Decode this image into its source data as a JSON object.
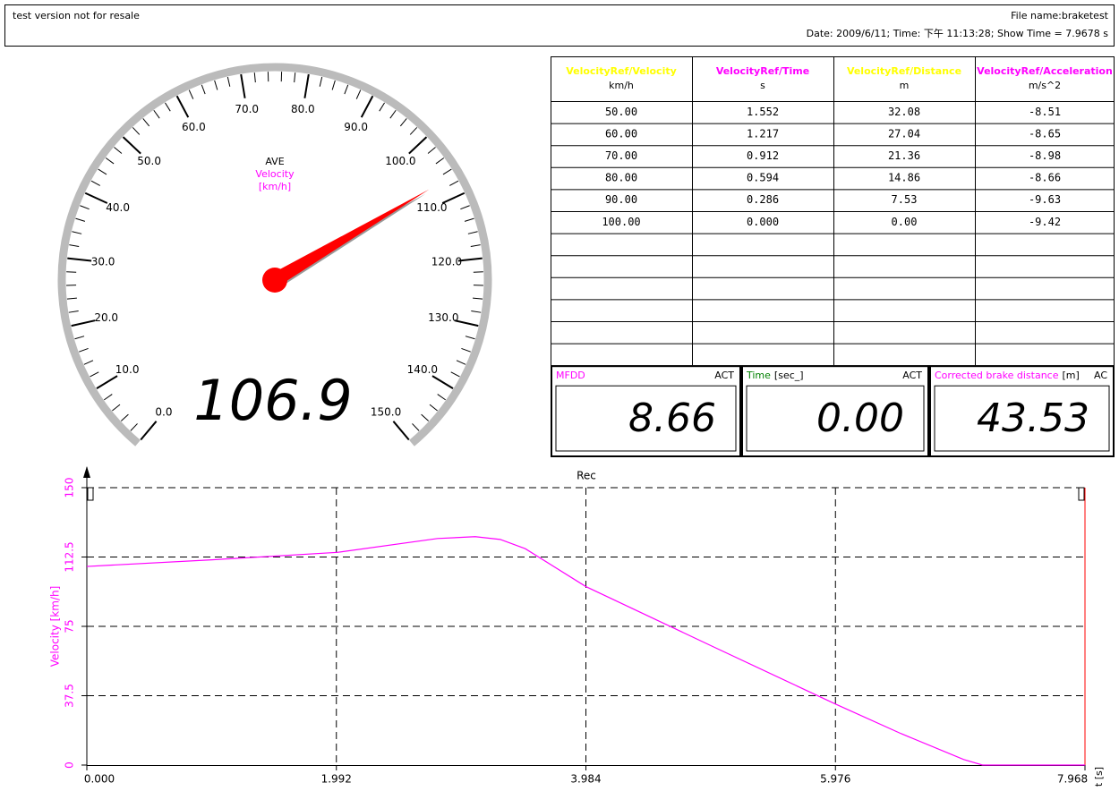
{
  "header": {
    "left": "test version not for resale",
    "file": "File name:braketest",
    "info": "Date: 2009/6/11; Time: 下午 11:13:28; Show Time = 7.9678 s"
  },
  "gauge": {
    "labels": [
      "AVE",
      "Velocity",
      "[km/h]"
    ],
    "label_colors": [
      "#000000",
      "#ff00ff",
      "#ff00ff"
    ],
    "range": [
      0,
      150
    ],
    "ticks": [
      {
        "value": 0,
        "label": "0.0"
      },
      {
        "value": 10,
        "label": "10.0"
      },
      {
        "value": 20,
        "label": "20.0"
      },
      {
        "value": 30,
        "label": "30.0"
      },
      {
        "value": 40,
        "label": "40.0"
      },
      {
        "value": 50,
        "label": "50.0"
      },
      {
        "value": 60,
        "label": "60.0"
      },
      {
        "value": 70,
        "label": "70.0"
      },
      {
        "value": 80,
        "label": "80.0"
      },
      {
        "value": 90,
        "label": "90.0"
      },
      {
        "value": 100,
        "label": "100.0"
      },
      {
        "value": 110,
        "label": "110.0"
      },
      {
        "value": 120,
        "label": "120.0"
      },
      {
        "value": 130,
        "label": "130.0"
      },
      {
        "value": 140,
        "label": "140.0"
      },
      {
        "value": 150,
        "label": "150.0"
      }
    ],
    "value": 106.9,
    "needle_color": "#ff0000"
  },
  "table": {
    "columns": [
      {
        "name": "VelocityRef/Velocity",
        "unit": "km/h",
        "color": "#ffff00"
      },
      {
        "name": "VelocityRef/Time",
        "unit": "s",
        "color": "#ff00ff"
      },
      {
        "name": "VelocityRef/Distance",
        "unit": "m",
        "color": "#ffff00"
      },
      {
        "name": "VelocityRef/Acceleration",
        "unit": "m/s^2",
        "color": "#ff00ff"
      }
    ],
    "rows": [
      [
        "50.00",
        "1.552",
        "32.08",
        "-8.51"
      ],
      [
        "60.00",
        "1.217",
        "27.04",
        "-8.65"
      ],
      [
        "70.00",
        "0.912",
        "21.36",
        "-8.98"
      ],
      [
        "80.00",
        "0.594",
        "14.86",
        "-8.66"
      ],
      [
        "90.00",
        "0.286",
        "7.53",
        "-9.63"
      ],
      [
        "100.00",
        "0.000",
        "0.00",
        "-9.42"
      ]
    ]
  },
  "displays": [
    {
      "label": "MFDD",
      "label_color": "#ff00ff",
      "status": "ACT",
      "value": "8.66"
    },
    {
      "label": "Time",
      "label_color": "#008000",
      "unit": "[sec_]",
      "status": "ACT",
      "value": "0.00"
    },
    {
      "label": "Corrected brake distance",
      "label_color": "#ff00ff",
      "unit": "[m]",
      "status": "AC",
      "value": "43.53"
    }
  ],
  "chart_data": {
    "type": "line",
    "title": "Rec",
    "y_label": "Velocity [km/h]",
    "x_label": "t [s]",
    "x": [
      0,
      1,
      2,
      2.8,
      3.1,
      3.3,
      3.5,
      3.984,
      5,
      5.976,
      6.5,
      7,
      7.15,
      7.968
    ],
    "values": [
      107.4,
      111,
      115,
      122.5,
      123.5,
      122,
      117,
      96.5,
      64,
      33,
      17,
      3,
      0,
      0
    ],
    "color": "#ff00ff",
    "xlim": [
      0,
      7.968
    ],
    "ylim": [
      0,
      150
    ],
    "xticks": [
      {
        "value": 0,
        "label": "0.000"
      },
      {
        "value": 1.992,
        "label": "1.992"
      },
      {
        "value": 3.984,
        "label": "3.984"
      },
      {
        "value": 5.976,
        "label": "5.976"
      },
      {
        "value": 7.968,
        "label": "7.968"
      }
    ],
    "yticks": [
      0,
      37.5,
      75,
      112.5,
      150
    ],
    "grid": true
  }
}
